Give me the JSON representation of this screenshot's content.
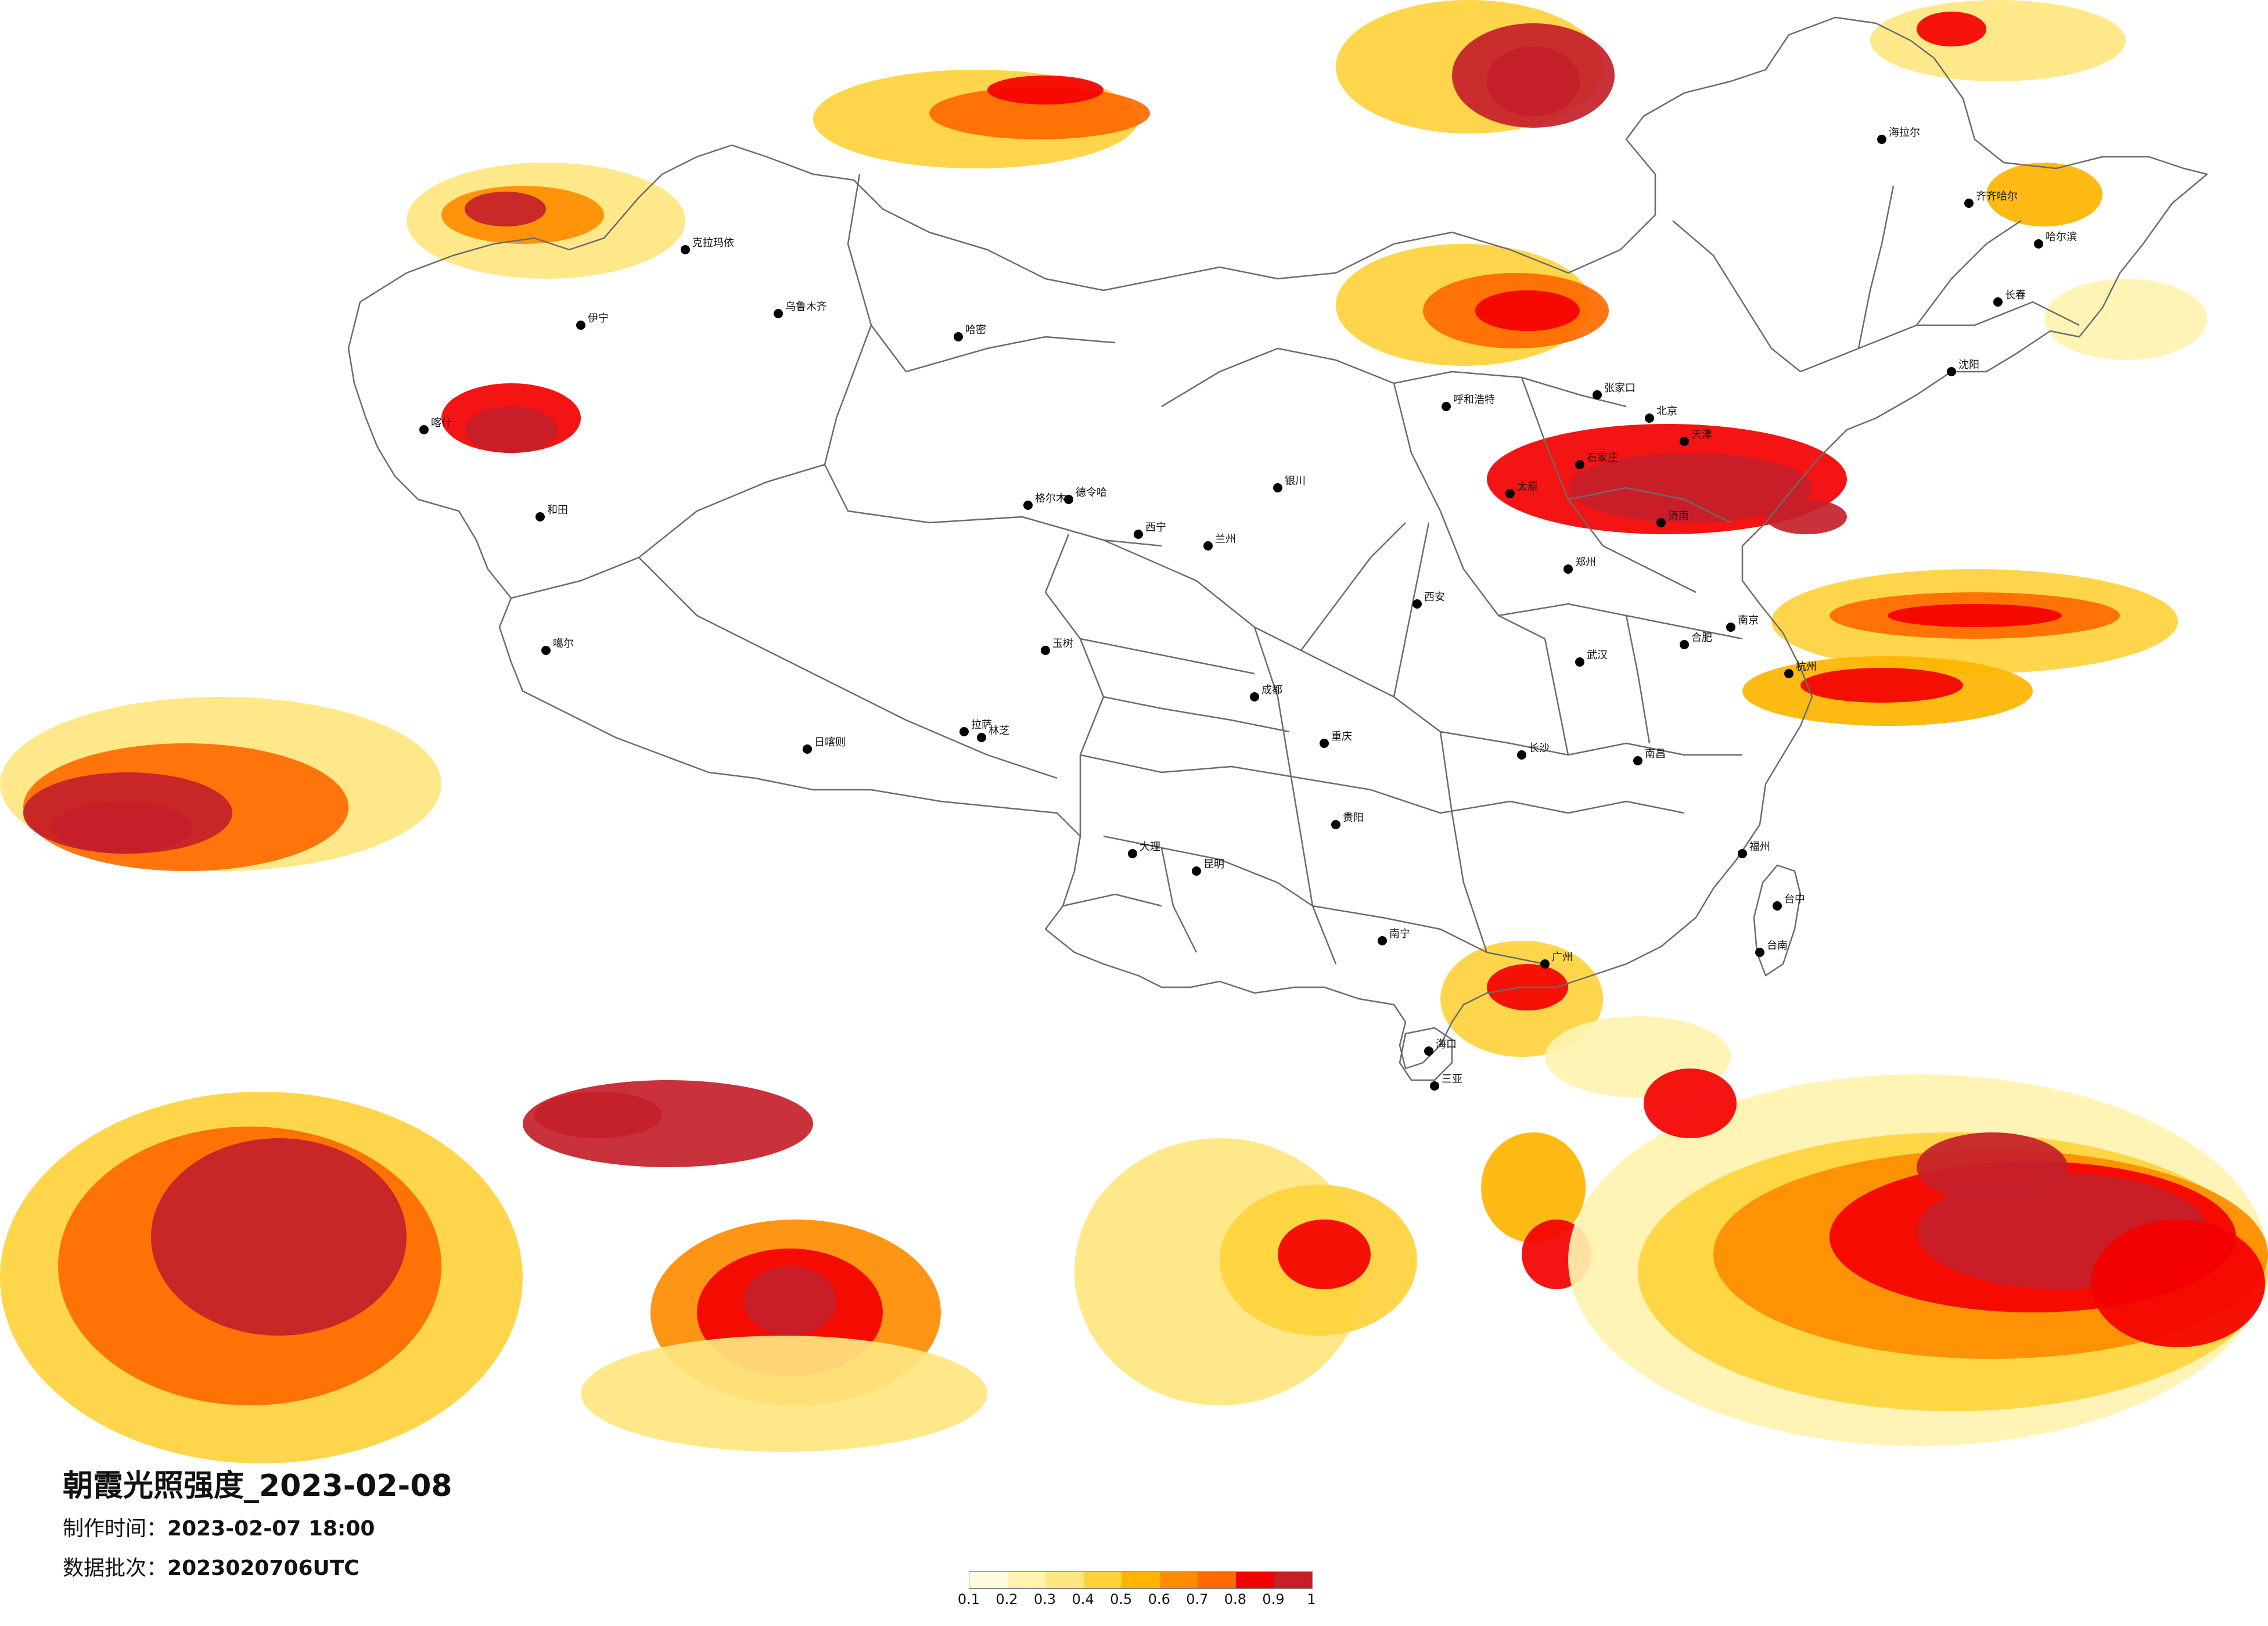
{
  "map": {
    "title": "朝霞光照强度_2023-02-08",
    "made_time_label": "制作时间：",
    "made_time_value": "2023-02-07 18:00",
    "batch_label": "数据批次：",
    "batch_value": "2023020706UTC"
  },
  "legend": {
    "ticks": [
      "0.1",
      "0.2",
      "0.3",
      "0.4",
      "0.5",
      "0.6",
      "0.7",
      "0.8",
      "0.9",
      "1"
    ],
    "colors": [
      "#fffbe0",
      "#fff3b0",
      "#ffe680",
      "#ffd23c",
      "#ffb400",
      "#ff8c00",
      "#ff6a00",
      "#f40000",
      "#c4202a"
    ]
  },
  "cities": [
    {
      "name": "北京",
      "pos": "north"
    },
    {
      "name": "石家庄",
      "pos": "north"
    },
    {
      "name": "太原",
      "pos": "north"
    },
    {
      "name": "郑州",
      "pos": "central"
    },
    {
      "name": "武汉",
      "pos": "central"
    },
    {
      "name": "长沙",
      "pos": "central"
    },
    {
      "name": "南昌",
      "pos": "central"
    },
    {
      "name": "合肥",
      "pos": "east"
    },
    {
      "name": "南京",
      "pos": "east"
    },
    {
      "name": "杭州",
      "pos": "east"
    },
    {
      "name": "福州",
      "pos": "southeast"
    },
    {
      "name": "台中",
      "pos": "taiwan"
    },
    {
      "name": "台南",
      "pos": "taiwan"
    },
    {
      "name": "广州",
      "pos": "south"
    },
    {
      "name": "南宁",
      "pos": "south"
    },
    {
      "name": "昆明",
      "pos": "southwest"
    },
    {
      "name": "贵阳",
      "pos": "southwest"
    },
    {
      "name": "重庆",
      "pos": "southwest"
    },
    {
      "name": "成都",
      "pos": "southwest"
    },
    {
      "name": "西安",
      "pos": "northwest"
    },
    {
      "name": "兰州",
      "pos": "northwest"
    },
    {
      "name": "西宁",
      "pos": "northwest"
    },
    {
      "name": "银川",
      "pos": "northwest"
    },
    {
      "name": "乌鲁木齐",
      "pos": "xinjiang"
    },
    {
      "name": "拉萨",
      "pos": "tibet"
    },
    {
      "name": "哈尔滨",
      "pos": "northeast"
    },
    {
      "name": "长春",
      "pos": "northeast"
    },
    {
      "name": "沈阳",
      "pos": "northeast"
    },
    {
      "name": "济南",
      "pos": "east"
    },
    {
      "name": "天津",
      "pos": "north"
    },
    {
      "name": "呼和浩特",
      "pos": "north"
    },
    {
      "name": "海拉尔",
      "pos": "northeast"
    },
    {
      "name": "齐齐哈尔",
      "pos": "northeast"
    },
    {
      "name": "伊宁",
      "pos": "xinjiang"
    },
    {
      "name": "克拉玛依",
      "pos": "xinjiang"
    },
    {
      "name": "哈密",
      "pos": "xinjiang"
    },
    {
      "name": "喀什",
      "pos": "xinjiang"
    },
    {
      "name": "和田",
      "pos": "xinjiang"
    },
    {
      "name": "噶尔",
      "pos": "tibet"
    },
    {
      "name": "日喀则",
      "pos": "tibet"
    },
    {
      "name": "林芝",
      "pos": "tibet"
    },
    {
      "name": "格尔木",
      "pos": "northwest"
    },
    {
      "name": "德令哈",
      "pos": "northwest"
    },
    {
      "name": "玉树",
      "pos": "northwest"
    },
    {
      "name": "海口",
      "pos": "south"
    },
    {
      "name": "三亚",
      "pos": "south"
    },
    {
      "name": "大理",
      "pos": "southwest"
    },
    {
      "name": "张家口",
      "pos": "north"
    }
  ]
}
